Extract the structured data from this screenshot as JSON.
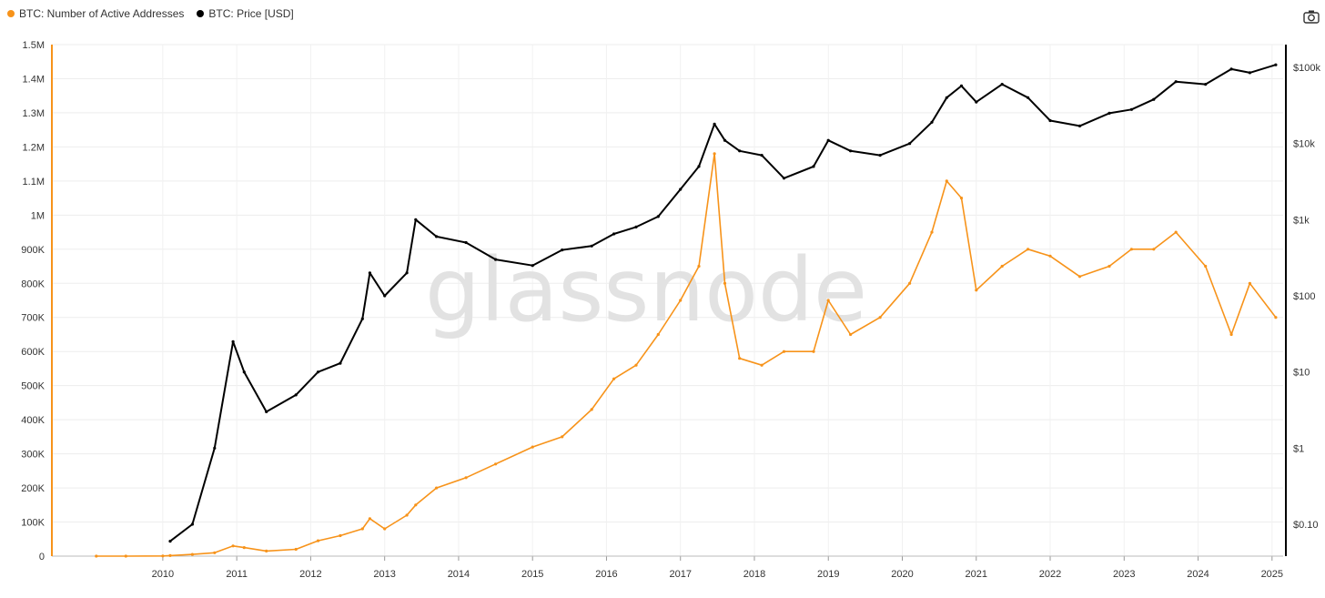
{
  "legend": [
    {
      "label": "BTC: Number of Active Addresses",
      "color": "#f7931a"
    },
    {
      "label": "BTC: Price [USD]",
      "color": "#000000"
    }
  ],
  "toolbar": {
    "camera_icon": "camera-icon"
  },
  "watermark": "glassnode",
  "chart_data": {
    "type": "line",
    "title": "",
    "x": [
      2009.6,
      2010.0,
      2010.5,
      2010.6,
      2010.9,
      2011.2,
      2011.45,
      2011.6,
      2011.9,
      2012.3,
      2012.6,
      2012.9,
      2013.2,
      2013.3,
      2013.5,
      2013.8,
      2013.92,
      2014.2,
      2014.6,
      2015.0,
      2015.5,
      2015.9,
      2016.3,
      2016.6,
      2016.9,
      2017.2,
      2017.5,
      2017.75,
      2017.96,
      2018.1,
      2018.3,
      2018.6,
      2018.9,
      2019.3,
      2019.5,
      2019.8,
      2020.2,
      2020.6,
      2020.9,
      2021.1,
      2021.3,
      2021.5,
      2021.85,
      2022.2,
      2022.5,
      2022.9,
      2023.3,
      2023.6,
      2023.9,
      2024.2,
      2024.6,
      2024.95,
      2025.2,
      2025.55
    ],
    "series": [
      {
        "name": "BTC: Number of Active Addresses",
        "color": "#f7931a",
        "axis": "left",
        "values": [
          0,
          0,
          500,
          1500,
          5000,
          10000,
          30000,
          25000,
          15000,
          20000,
          45000,
          60000,
          80000,
          110000,
          80000,
          120000,
          150000,
          200000,
          230000,
          270000,
          320000,
          350000,
          430000,
          520000,
          560000,
          650000,
          750000,
          850000,
          1180000,
          800000,
          580000,
          560000,
          600000,
          600000,
          750000,
          650000,
          700000,
          800000,
          950000,
          1100000,
          1050000,
          780000,
          850000,
          900000,
          880000,
          820000,
          850000,
          900000,
          900000,
          950000,
          850000,
          650000,
          800000,
          700000
        ]
      },
      {
        "name": "BTC: Price [USD]",
        "color": "#000000",
        "axis": "right",
        "values": [
          null,
          null,
          null,
          0.06,
          0.1,
          1,
          25,
          10,
          3,
          5,
          10,
          13,
          50,
          200,
          100,
          200,
          1000,
          600,
          500,
          300,
          250,
          400,
          450,
          650,
          800,
          1100,
          2500,
          5000,
          18000,
          11000,
          8000,
          7000,
          3500,
          5000,
          11000,
          8000,
          7000,
          10000,
          19000,
          40000,
          57000,
          35000,
          60000,
          40000,
          20000,
          17000,
          25000,
          28000,
          38000,
          65000,
          60000,
          95000,
          85000,
          108000
        ]
      }
    ],
    "x_ticks": [
      "2010",
      "2011",
      "2012",
      "2013",
      "2014",
      "2015",
      "2016",
      "2017",
      "2018",
      "2019",
      "2020",
      "2021",
      "2022",
      "2023",
      "2024",
      "2025"
    ],
    "y_left_ticks": [
      "0",
      "100K",
      "200K",
      "300K",
      "400K",
      "500K",
      "600K",
      "700K",
      "800K",
      "900K",
      "1M",
      "1.1M",
      "1.2M",
      "1.3M",
      "1.4M",
      "1.5M"
    ],
    "y_left_lim": [
      0,
      1500000
    ],
    "y_right_ticks": [
      "$0.10",
      "$1",
      "$10",
      "$100",
      "$1k",
      "$10k",
      "$100k"
    ],
    "y_right_scale": "log",
    "xlim": [
      2009.0,
      2025.65
    ],
    "grid": true
  }
}
